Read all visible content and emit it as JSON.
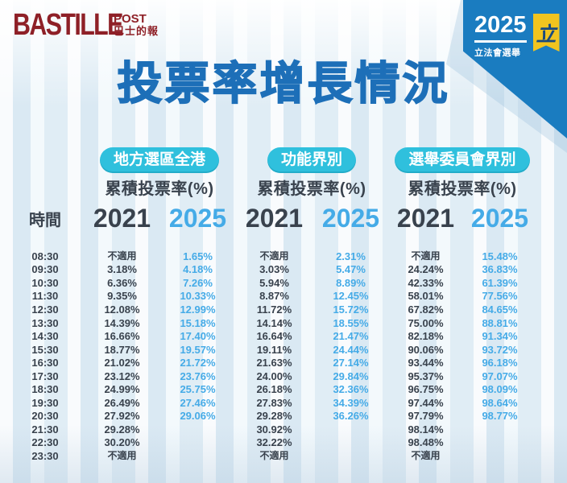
{
  "header": {
    "logo_main": "BASTILLE",
    "logo_post": "POST",
    "logo_cn": "巴士的報",
    "badge_year": "2025",
    "badge_caption": "立法會選舉",
    "badge_glyph": "立"
  },
  "title": "投票率增長情況",
  "table": {
    "time_header": "時間",
    "na_label": "不適用",
    "times": [
      "08:30",
      "09:30",
      "10:30",
      "11:30",
      "12:30",
      "13:30",
      "14:30",
      "15:30",
      "16:30",
      "17:30",
      "18:30",
      "19:30",
      "20:30",
      "21:30",
      "22:30",
      "23:30"
    ],
    "sections": [
      {
        "name": "地方選區全港",
        "sub_label": "累積投票率(%)",
        "year_2021": "2021",
        "year_2025": "2025",
        "values_2021": [
          "不適用",
          "3.18%",
          "6.36%",
          "9.35%",
          "12.08%",
          "14.39%",
          "16.66%",
          "18.77%",
          "21.02%",
          "23.12%",
          "24.99%",
          "26.49%",
          "27.92%",
          "29.28%",
          "30.20%",
          "不適用"
        ],
        "values_2025": [
          "1.65%",
          "4.18%",
          "7.26%",
          "10.33%",
          "12.99%",
          "15.18%",
          "17.40%",
          "19.57%",
          "21.72%",
          "23.76%",
          "25.75%",
          "27.46%",
          "29.06%",
          "",
          "",
          ""
        ]
      },
      {
        "name": "功能界別",
        "sub_label": "累積投票率(%)",
        "year_2021": "2021",
        "year_2025": "2025",
        "values_2021": [
          "不適用",
          "3.03%",
          "5.94%",
          "8.87%",
          "11.72%",
          "14.14%",
          "16.64%",
          "19.11%",
          "21.63%",
          "24.00%",
          "26.18%",
          "27.83%",
          "29.28%",
          "30.92%",
          "32.22%",
          "不適用"
        ],
        "values_2025": [
          "2.31%",
          "5.47%",
          "8.89%",
          "12.45%",
          "15.72%",
          "18.55%",
          "21.47%",
          "24.44%",
          "27.14%",
          "29.84%",
          "32.36%",
          "34.39%",
          "36.26%",
          "",
          "",
          ""
        ]
      },
      {
        "name": "選舉委員會界別",
        "sub_label": "累積投票率(%)",
        "year_2021": "2021",
        "year_2025": "2025",
        "values_2021": [
          "不適用",
          "24.24%",
          "42.33%",
          "58.01%",
          "67.82%",
          "75.00%",
          "82.18%",
          "90.06%",
          "93.44%",
          "95.37%",
          "96.75%",
          "97.44%",
          "97.79%",
          "98.14%",
          "98.48%",
          "不適用"
        ],
        "values_2025": [
          "15.48%",
          "36.83%",
          "61.39%",
          "77.56%",
          "84.65%",
          "88.81%",
          "91.34%",
          "93.72%",
          "96.18%",
          "97.07%",
          "98.09%",
          "98.64%",
          "98.77%",
          "",
          "",
          ""
        ]
      }
    ]
  },
  "chart_data": {
    "type": "table",
    "title": "投票率增長情況",
    "x": [
      "08:30",
      "09:30",
      "10:30",
      "11:30",
      "12:30",
      "13:30",
      "14:30",
      "15:30",
      "16:30",
      "17:30",
      "18:30",
      "19:30",
      "20:30",
      "21:30",
      "22:30",
      "23:30"
    ],
    "xlabel": "時間",
    "ylabel": "累積投票率(%)",
    "series": [
      {
        "name": "地方選區全港 2021",
        "values": [
          null,
          3.18,
          6.36,
          9.35,
          12.08,
          14.39,
          16.66,
          18.77,
          21.02,
          23.12,
          24.99,
          26.49,
          27.92,
          29.28,
          30.2,
          null
        ]
      },
      {
        "name": "地方選區全港 2025",
        "values": [
          1.65,
          4.18,
          7.26,
          10.33,
          12.99,
          15.18,
          17.4,
          19.57,
          21.72,
          23.76,
          25.75,
          27.46,
          29.06,
          null,
          null,
          null
        ]
      },
      {
        "name": "功能界別 2021",
        "values": [
          null,
          3.03,
          5.94,
          8.87,
          11.72,
          14.14,
          16.64,
          19.11,
          21.63,
          24.0,
          26.18,
          27.83,
          29.28,
          30.92,
          32.22,
          null
        ]
      },
      {
        "name": "功能界別 2025",
        "values": [
          2.31,
          5.47,
          8.89,
          12.45,
          15.72,
          18.55,
          21.47,
          24.44,
          27.14,
          29.84,
          32.36,
          34.39,
          36.26,
          null,
          null,
          null
        ]
      },
      {
        "name": "選舉委員會界別 2021",
        "values": [
          null,
          24.24,
          42.33,
          58.01,
          67.82,
          75.0,
          82.18,
          90.06,
          93.44,
          95.37,
          96.75,
          97.44,
          97.79,
          98.14,
          98.48,
          null
        ]
      },
      {
        "name": "選舉委員會界別 2025",
        "values": [
          15.48,
          36.83,
          61.39,
          77.56,
          84.65,
          88.81,
          91.34,
          93.72,
          96.18,
          97.07,
          98.09,
          98.64,
          98.77,
          null,
          null,
          null
        ]
      }
    ],
    "not_applicable_label": "不適用"
  },
  "colors": {
    "title_blue": "#1d6fb8",
    "pill_cyan": "#2fc0dd",
    "blue_2025": "#45abe7",
    "ink": "#39424d",
    "badge_blue": "#1a7cc0",
    "pennant_yellow": "#f1c41f",
    "logo_red": "#8e2027"
  }
}
